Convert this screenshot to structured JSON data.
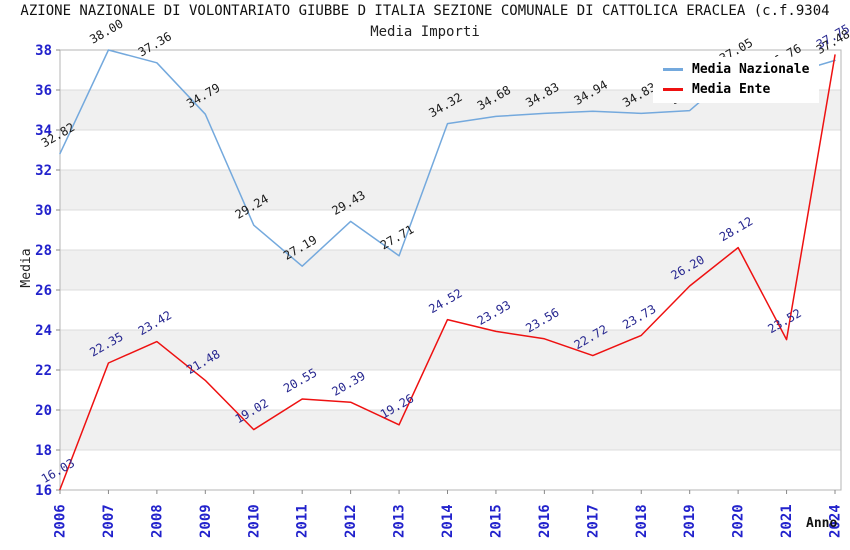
{
  "page": {
    "title": "AZIONE NAZIONALE DI VOLONTARIATO GIUBBE D ITALIA SEZIONE COMUNALE DI CATTOLICA ERACLEA (c.f.9304",
    "subtitle": "Media Importi"
  },
  "legend": {
    "items": [
      {
        "label": "Media Nazionale",
        "color": "#74A9DD"
      },
      {
        "label": "Media Ente",
        "color": "#EE1111"
      }
    ]
  },
  "chart_data": {
    "type": "line",
    "title": "Media Importi",
    "xlabel": "Anno",
    "ylabel": "Media",
    "categories": [
      "2006",
      "2007",
      "2008",
      "2009",
      "2010",
      "2011",
      "2012",
      "2013",
      "2014",
      "2015",
      "2016",
      "2017",
      "2018",
      "2019",
      "2020",
      "2021",
      "2024"
    ],
    "series": [
      {
        "name": "Media Nazionale",
        "color": "#74A9DD",
        "label_color": "#1a1a1a",
        "values": [
          32.82,
          38.0,
          37.36,
          34.79,
          29.24,
          27.19,
          29.43,
          27.71,
          34.32,
          34.68,
          34.83,
          34.94,
          34.83,
          34.97,
          37.05,
          36.76,
          37.48
        ]
      },
      {
        "name": "Media Ente",
        "color": "#EE1111",
        "label_color": "#26268f",
        "values": [
          16.03,
          22.35,
          23.42,
          21.48,
          19.02,
          20.55,
          20.39,
          19.26,
          24.52,
          23.93,
          23.56,
          22.72,
          23.73,
          26.2,
          28.12,
          23.52,
          37.75
        ]
      }
    ],
    "ylim": [
      16,
      38
    ],
    "ytick_step": 2,
    "grid": true,
    "band_color": "#F0F0F0",
    "gridline_color": "#DCDCDC",
    "border_color": "#B5B5B5",
    "tick_label_color": "#2222CC",
    "legend_position": "top-right"
  }
}
